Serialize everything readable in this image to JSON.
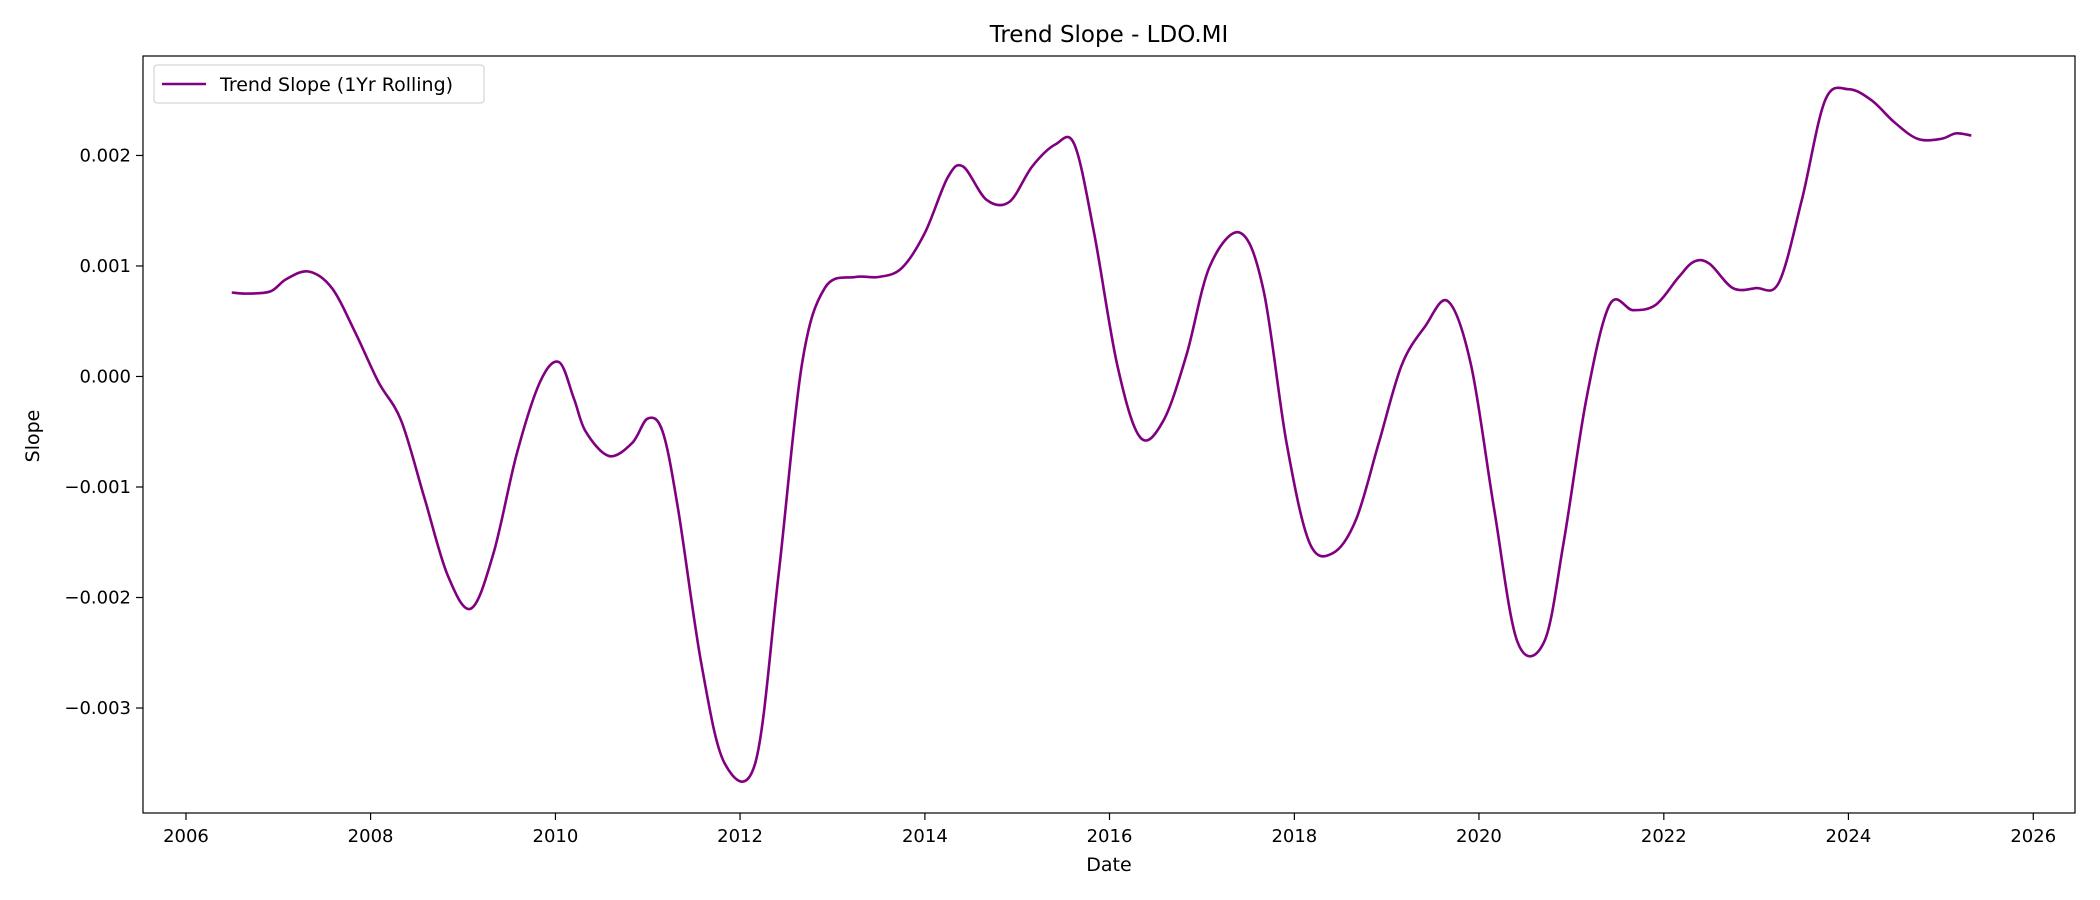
{
  "chart_data": {
    "type": "line",
    "title": "Trend Slope - LDO.MI",
    "xlabel": "Date",
    "ylabel": "Slope",
    "xlim": [
      "2005-07-15",
      "2026-06-15"
    ],
    "ylim": [
      -0.00395,
      0.0029
    ],
    "x_ticks": [
      "2006",
      "2008",
      "2010",
      "2012",
      "2014",
      "2016",
      "2018",
      "2020",
      "2022",
      "2024",
      "2026"
    ],
    "y_ticks": [
      {
        "value": -0.003,
        "label": "−0.003"
      },
      {
        "value": -0.002,
        "label": "−0.002"
      },
      {
        "value": -0.001,
        "label": "−0.001"
      },
      {
        "value": 0.0,
        "label": "0.000"
      },
      {
        "value": 0.001,
        "label": "0.001"
      },
      {
        "value": 0.002,
        "label": "0.002"
      }
    ],
    "grid": false,
    "legend_position": "upper-left",
    "series": [
      {
        "name": "Trend Slope (1Yr Rolling)",
        "color": "#800080",
        "x": [
          "2006-07-01",
          "2006-09-01",
          "2006-12-01",
          "2007-02-01",
          "2007-05-01",
          "2007-08-01",
          "2007-11-01",
          "2008-02-01",
          "2008-05-01",
          "2008-08-01",
          "2008-11-01",
          "2009-02-01",
          "2009-05-01",
          "2009-08-01",
          "2009-11-01",
          "2010-01-15",
          "2010-03-15",
          "2010-05-01",
          "2010-08-01",
          "2010-11-01",
          "2011-01-01",
          "2011-03-01",
          "2011-05-01",
          "2011-08-01",
          "2011-11-01",
          "2012-03-01",
          "2012-06-01",
          "2012-09-01",
          "2012-12-01",
          "2013-04-01",
          "2013-07-01",
          "2013-10-01",
          "2014-01-01",
          "2014-04-01",
          "2014-06-01",
          "2014-09-01",
          "2014-12-01",
          "2015-03-01",
          "2015-06-01",
          "2015-08-15",
          "2015-11-01",
          "2016-02-01",
          "2016-05-01",
          "2016-08-01",
          "2016-11-01",
          "2017-02-01",
          "2017-06-01",
          "2017-09-01",
          "2017-12-01",
          "2018-03-01",
          "2018-06-01",
          "2018-09-01",
          "2018-12-01",
          "2019-03-01",
          "2019-06-01",
          "2019-09-01",
          "2019-12-01",
          "2020-03-01",
          "2020-06-01",
          "2020-09-15",
          "2020-12-01",
          "2021-03-01",
          "2021-06-01",
          "2021-09-01",
          "2021-12-01",
          "2022-03-01",
          "2022-05-01",
          "2022-07-01",
          "2022-10-01",
          "2023-01-01",
          "2023-04-01",
          "2023-07-01",
          "2023-10-01",
          "2024-01-01",
          "2024-04-01",
          "2024-07-01",
          "2024-10-01",
          "2025-01-01",
          "2025-03-01",
          "2025-05-01"
        ],
        "y": [
          0.00076,
          0.00075,
          0.00077,
          0.00088,
          0.00095,
          0.0008,
          0.0004,
          -5e-05,
          -0.0004,
          -0.0011,
          -0.0018,
          -0.0021,
          -0.0016,
          -0.0007,
          -5e-05,
          0.00013,
          -0.0002,
          -0.0005,
          -0.00072,
          -0.0006,
          -0.00038,
          -0.0005,
          -0.0012,
          -0.0026,
          -0.0035,
          -0.0035,
          -0.0018,
          0.0001,
          0.0008,
          0.0009,
          0.0009,
          0.00098,
          0.0013,
          0.0018,
          0.0019,
          0.0016,
          0.00158,
          0.0019,
          0.0021,
          0.0021,
          0.0013,
          0.0001,
          -0.00055,
          -0.0004,
          0.0002,
          0.001,
          0.0013,
          0.00078,
          -0.0006,
          -0.0015,
          -0.0016,
          -0.0013,
          -0.0006,
          0.0001,
          0.00045,
          0.00068,
          0.0001,
          -0.0012,
          -0.0024,
          -0.0024,
          -0.0015,
          -0.0002,
          0.00065,
          0.0006,
          0.00065,
          0.0009,
          0.00104,
          0.00102,
          0.0008,
          0.0008,
          0.00085,
          0.0016,
          0.0025,
          0.0026,
          0.0025,
          0.0023,
          0.00215,
          0.00215,
          0.0022,
          0.00218
        ]
      }
    ]
  }
}
